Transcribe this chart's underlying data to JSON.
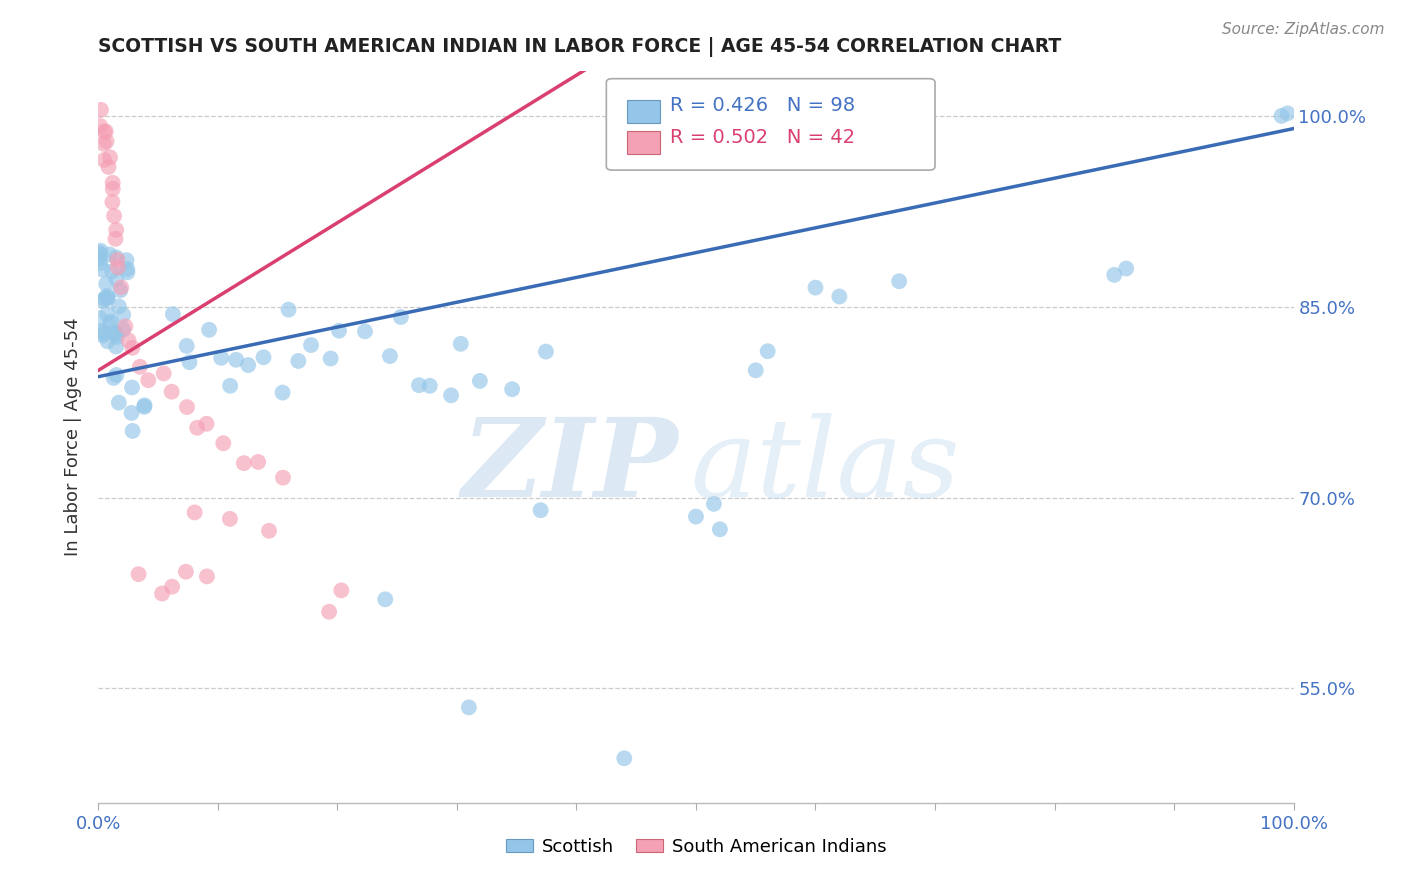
{
  "title": "SCOTTISH VS SOUTH AMERICAN INDIAN IN LABOR FORCE | AGE 45-54 CORRELATION CHART",
  "source": "Source: ZipAtlas.com",
  "ylabel": "In Labor Force | Age 45-54",
  "xlim": [
    0.0,
    1.0
  ],
  "ylim": [
    0.46,
    1.035
  ],
  "y_ticks": [
    0.55,
    0.7,
    0.85,
    1.0
  ],
  "y_tick_labels": [
    "55.0%",
    "70.0%",
    "85.0%",
    "100.0%"
  ],
  "scottish_R": 0.426,
  "scottish_N": 98,
  "sai_R": 0.502,
  "sai_N": 42,
  "scottish_color": "#93C6E8",
  "sai_color": "#F4A0B5",
  "trend_scottish_color": "#3A6CB5",
  "trend_sai_color": "#D94070",
  "watermark_zip_color": "#C8DCF0",
  "watermark_atlas_color": "#C8DCF0",
  "background_color": "#FFFFFF",
  "grid_color": "#CCCCCC",
  "title_color": "#222222",
  "axis_label_color": "#333333",
  "tick_label_color": "#4472C4",
  "source_color": "#888888",
  "legend_edge_color": "#AAAAAA",
  "scottish_trend_intercept": 0.795,
  "scottish_trend_slope": 0.18,
  "sai_trend_intercept": 0.83,
  "sai_trend_slope": 0.55
}
